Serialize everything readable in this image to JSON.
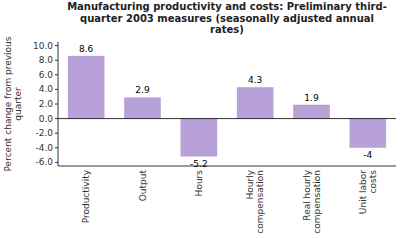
{
  "chart_data": {
    "type": "bar",
    "title": "Manufacturing productivity and costs: Preliminary third-\nquarter 2003 measures (seasonally adjusted annual\nrates)",
    "categories": [
      "Productivity",
      "Output",
      "Hours",
      "Hourly\ncompensation",
      "Real hourly\ncompensation",
      "Unit labor\ncosts"
    ],
    "values": [
      8.6,
      2.9,
      -5.2,
      4.3,
      1.9,
      -4.0
    ],
    "color": "#b8a0d8",
    "ylabel": "Percent change from previous\nquarter",
    "ylim": [
      -6.5,
      10.5
    ],
    "yticks": [
      {
        "value": -6.0,
        "label": "-6.0"
      },
      {
        "value": -4.0,
        "label": "-4.0"
      },
      {
        "value": -2.0,
        "label": "-2.0"
      },
      {
        "value": 0.0,
        "label": "0.0"
      },
      {
        "value": 2.0,
        "label": "2.0"
      },
      {
        "value": 4.0,
        "label": "4.0"
      },
      {
        "value": 6.0,
        "label": "6.0"
      },
      {
        "value": 8.0,
        "label": "8.0"
      },
      {
        "value": 10.0,
        "label": "10.0"
      }
    ],
    "grid": false,
    "data_labels": true
  }
}
